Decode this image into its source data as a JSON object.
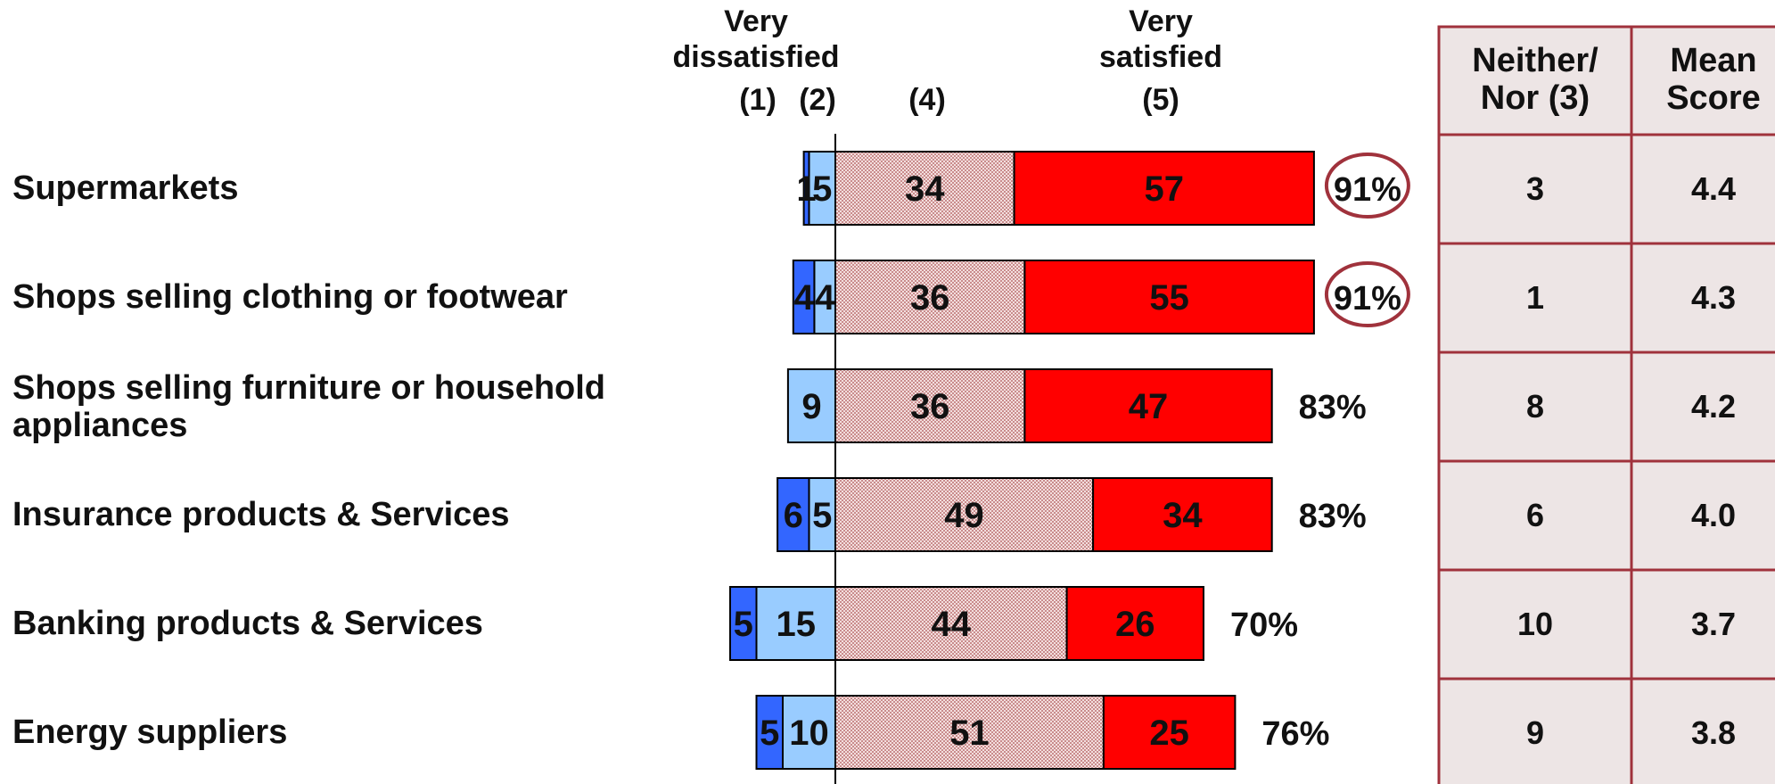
{
  "chart_data": {
    "type": "bar",
    "stacked": true,
    "diverging": true,
    "categories": [
      "Supermarkets",
      "Shops selling clothing or footwear",
      "Shops selling furniture or household appliances",
      "Insurance products & Services",
      "Banking products & Services",
      "Energy suppliers"
    ],
    "series": [
      {
        "key": "very_dissatisfied",
        "values": [
          1,
          4,
          0,
          6,
          5,
          5
        ],
        "color": "#3366ff",
        "side": "negative"
      },
      {
        "key": "dissatisfied",
        "values": [
          5,
          4,
          9,
          5,
          15,
          10
        ],
        "color": "#99ccff",
        "side": "negative"
      },
      {
        "key": "satisfied",
        "values": [
          34,
          36,
          36,
          49,
          44,
          51
        ],
        "color": "#e9c4c4",
        "pattern": "checker",
        "side": "positive"
      },
      {
        "key": "very_satisfied",
        "values": [
          57,
          55,
          47,
          34,
          26,
          25
        ],
        "color": "#ff0000",
        "side": "positive"
      }
    ],
    "bar_labels": [
      [
        "1",
        "5",
        "34",
        "57"
      ],
      [
        "4",
        "4",
        "36",
        "55"
      ],
      [
        "",
        "9",
        "36",
        "47"
      ],
      [
        "6",
        "5",
        "49",
        "34"
      ],
      [
        "5",
        "15",
        "44",
        "26"
      ],
      [
        "5",
        "10",
        "51",
        "25"
      ]
    ],
    "net_satisfied": [
      "91%",
      "91%",
      "83%",
      "83%",
      "70%",
      "76%"
    ],
    "net_highlighted": [
      true,
      true,
      false,
      false,
      false,
      false
    ],
    "header_groups": [
      {
        "lines": [
          "Very",
          "dissatisfied"
        ]
      },
      {
        "lines": [
          "Very",
          "satisfied"
        ]
      }
    ],
    "header_codes": [
      "(1)",
      "(2)",
      "(4)",
      "(5)"
    ],
    "table": {
      "columns": [
        {
          "lines": [
            "Neither/",
            "Nor (3)"
          ]
        },
        {
          "lines": [
            "Mean",
            "Score"
          ]
        }
      ],
      "rows": [
        [
          "3",
          "4.4"
        ],
        [
          "1",
          "4.3"
        ],
        [
          "8",
          "4.2"
        ],
        [
          "6",
          "4.0"
        ],
        [
          "10",
          "3.7"
        ],
        [
          "9",
          "3.8"
        ]
      ]
    },
    "colors": {
      "table_fill": "#ede5e5",
      "table_border": "#a0323c",
      "highlight_ring": "#a0323c",
      "axis": "#000000"
    },
    "title": "",
    "xlabel": "",
    "ylabel": "",
    "grid": false,
    "legend": "none"
  }
}
